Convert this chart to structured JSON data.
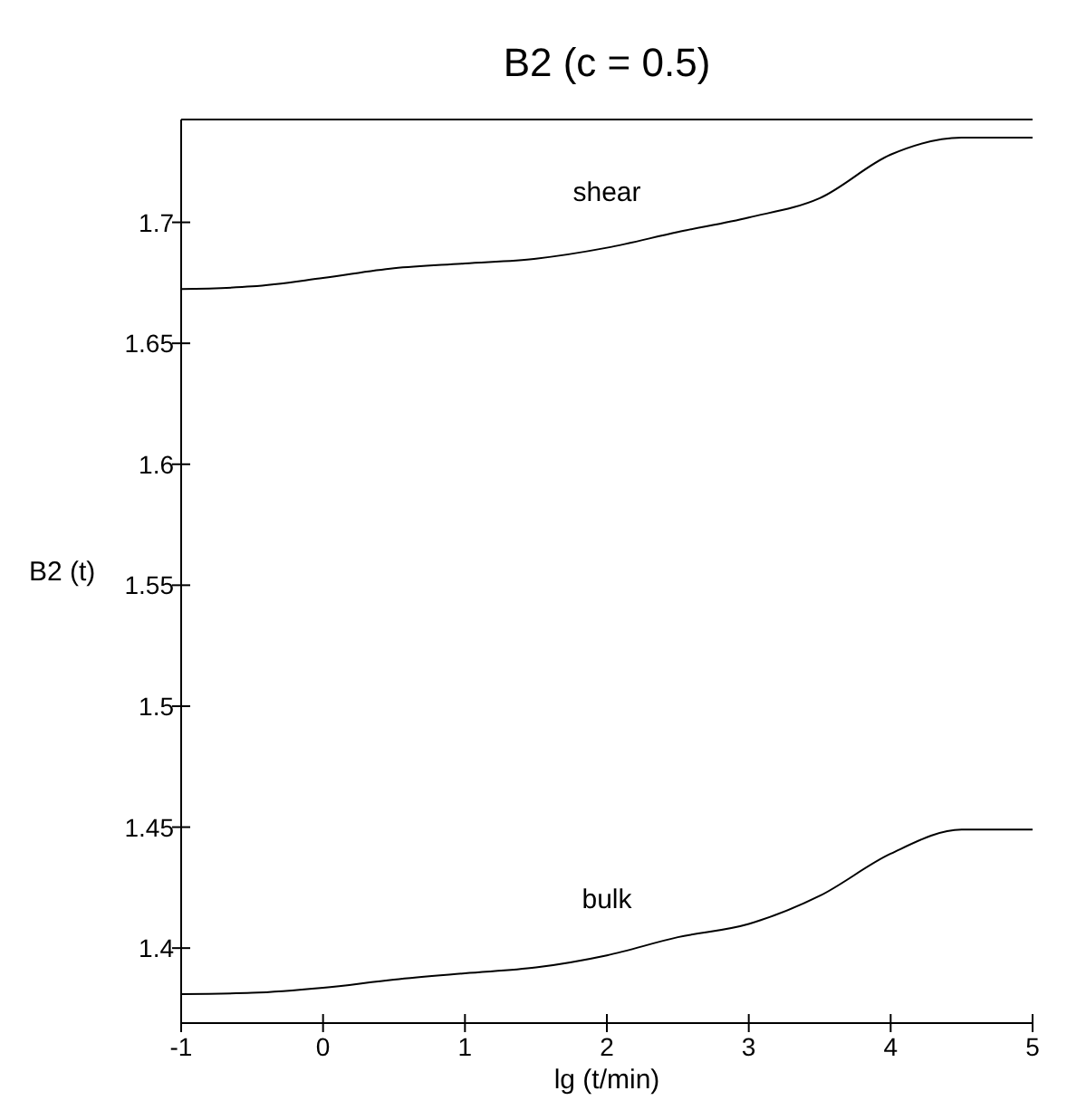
{
  "chart_data": {
    "type": "line",
    "title": "B2 (c = 0.5)",
    "xlabel": "lg (t/min)",
    "ylabel": "B2 (t)",
    "xlim": [
      -1,
      5
    ],
    "ylim": [
      1.369,
      1.7425
    ],
    "xticks": [
      -1,
      0,
      1,
      2,
      3,
      4,
      5
    ],
    "yticks": [
      1.4,
      1.45,
      1.5,
      1.55,
      1.6,
      1.65,
      1.7
    ],
    "grid": false,
    "marker": "none",
    "line_style": "solid",
    "series": [
      {
        "name": "shear",
        "color": "#000000",
        "x": [
          -1,
          -0.5,
          0,
          0.5,
          1,
          1.5,
          2,
          2.5,
          3,
          3.5,
          4,
          4.5,
          5
        ],
        "values": [
          1.6724,
          1.6735,
          1.677,
          1.681,
          1.683,
          1.685,
          1.6895,
          1.696,
          1.702,
          1.71,
          1.728,
          1.735,
          1.735
        ]
      },
      {
        "name": "bulk",
        "color": "#000000",
        "x": [
          -1,
          -0.5,
          0,
          0.5,
          1,
          1.5,
          2,
          2.5,
          3,
          3.5,
          4,
          4.5,
          5
        ],
        "values": [
          1.381,
          1.3815,
          1.3836,
          1.387,
          1.3896,
          1.392,
          1.397,
          1.4045,
          1.41,
          1.4216,
          1.439,
          1.449,
          1.449
        ]
      }
    ]
  }
}
